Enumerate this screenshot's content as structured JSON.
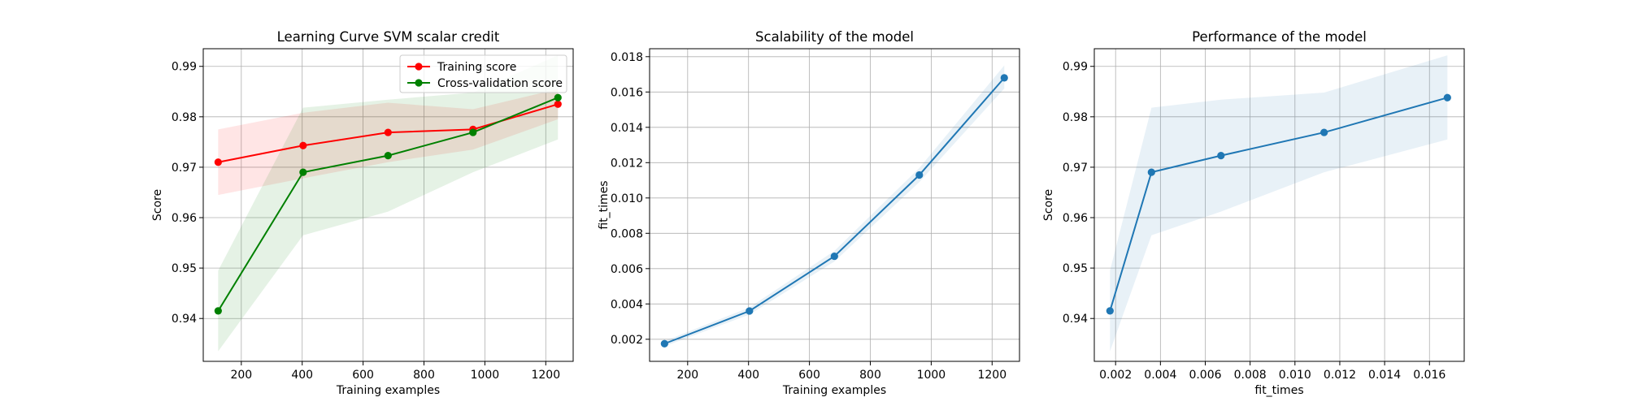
{
  "chart_data": [
    {
      "type": "line",
      "title": "Learning Curve SVM scalar credit",
      "xlabel": "Training examples",
      "ylabel": "Score",
      "xlim": [
        75,
        1290
      ],
      "ylim": [
        0.9315,
        0.9935
      ],
      "xticks": [
        200,
        400,
        600,
        800,
        1000,
        1200
      ],
      "yticks": [
        0.94,
        0.95,
        0.96,
        0.97,
        0.98,
        0.99
      ],
      "grid": true,
      "legend": "top-right",
      "series": [
        {
          "name": "Training score",
          "color": "#ff0000",
          "band_color": "#ff0000",
          "x": [
            124,
            403,
            682,
            961,
            1240
          ],
          "y": [
            0.971,
            0.9743,
            0.9769,
            0.9775,
            0.9825
          ],
          "upper": [
            0.9775,
            0.9808,
            0.9828,
            0.9815,
            0.9855
          ],
          "lower": [
            0.9645,
            0.9678,
            0.971,
            0.9735,
            0.9795
          ]
        },
        {
          "name": "Cross-validation score",
          "color": "#008000",
          "band_color": "#008000",
          "x": [
            124,
            403,
            682,
            961,
            1240
          ],
          "y": [
            0.9415,
            0.969,
            0.9723,
            0.9769,
            0.9838
          ],
          "upper": [
            0.9495,
            0.9818,
            0.9834,
            0.9848,
            0.9922
          ],
          "lower": [
            0.9335,
            0.9565,
            0.9612,
            0.969,
            0.9755
          ]
        }
      ]
    },
    {
      "type": "line",
      "title": "Scalability of the model",
      "xlabel": "Training examples",
      "ylabel": "fit_times",
      "xlim": [
        75,
        1290
      ],
      "ylim": [
        0.00075,
        0.01845
      ],
      "xticks": [
        200,
        400,
        600,
        800,
        1000,
        1200
      ],
      "yticks": [
        0.002,
        0.004,
        0.006,
        0.008,
        0.01,
        0.012,
        0.014,
        0.016,
        0.018
      ],
      "ytick_labels": [
        "0.002",
        "0.004",
        "0.006",
        "0.008",
        "0.010",
        "0.012",
        "0.014",
        "0.016",
        "0.018"
      ],
      "grid": true,
      "series": [
        {
          "color": "#1f77b4",
          "band_color": "#1f77b4",
          "x": [
            124,
            403,
            682,
            961,
            1240
          ],
          "y": [
            0.00175,
            0.0036,
            0.0067,
            0.0113,
            0.0168
          ],
          "upper": [
            0.0019,
            0.0038,
            0.007,
            0.0117,
            0.0175
          ],
          "lower": [
            0.0016,
            0.0034,
            0.0064,
            0.0109,
            0.0162
          ]
        }
      ]
    },
    {
      "type": "line",
      "title": "Performance of the model",
      "xlabel": "fit_times",
      "ylabel": "Score",
      "xlim": [
        0.00105,
        0.01755
      ],
      "ylim": [
        0.9315,
        0.9935
      ],
      "xticks": [
        0.002,
        0.004,
        0.006,
        0.008,
        0.01,
        0.012,
        0.014,
        0.016
      ],
      "xtick_labels": [
        "0.002",
        "0.004",
        "0.006",
        "0.008",
        "0.010",
        "0.012",
        "0.014",
        "0.016"
      ],
      "yticks": [
        0.94,
        0.95,
        0.96,
        0.97,
        0.98,
        0.99
      ],
      "grid": true,
      "series": [
        {
          "color": "#1f77b4",
          "band_color": "#1f77b4",
          "x": [
            0.00175,
            0.0036,
            0.0067,
            0.0113,
            0.0168
          ],
          "y": [
            0.9415,
            0.969,
            0.9723,
            0.9769,
            0.9838
          ],
          "upper": [
            0.9495,
            0.9818,
            0.9834,
            0.9848,
            0.9922
          ],
          "lower": [
            0.9335,
            0.9565,
            0.9612,
            0.969,
            0.9755
          ]
        }
      ]
    }
  ]
}
